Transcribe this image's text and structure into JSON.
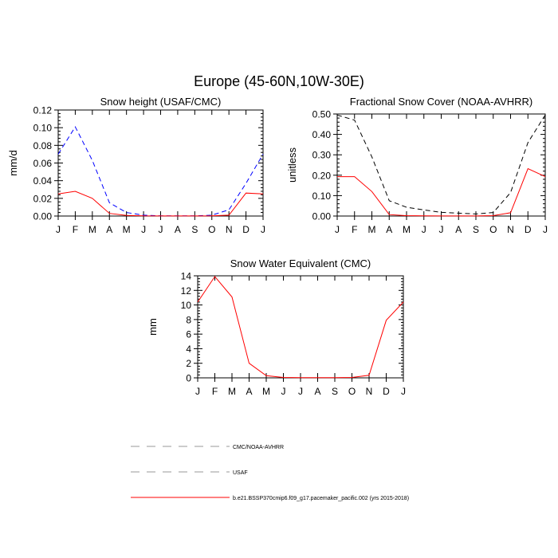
{
  "figure": {
    "title": "Europe (45-60N,10W-30E)"
  },
  "months": [
    "J",
    "F",
    "M",
    "A",
    "M",
    "J",
    "J",
    "A",
    "S",
    "O",
    "N",
    "D",
    "J"
  ],
  "chart_data": [
    {
      "type": "line",
      "title": "Snow height (USAF/CMC)",
      "xlabel": "",
      "ylabel": "mm/d",
      "ylim": [
        0,
        0.12
      ],
      "yticks": [
        0,
        0.02,
        0.04,
        0.06,
        0.08,
        0.1,
        0.12
      ],
      "ytick_labels": [
        "0.00",
        "0.02",
        "0.04",
        "0.06",
        "0.08",
        "0.10",
        "0.12"
      ],
      "series": [
        {
          "name": "USAF",
          "color": "#0000ff",
          "dash": "dash",
          "values": [
            0.07,
            0.101,
            0.063,
            0.015,
            0.004,
            0.001,
            0.0003,
            0.0002,
            0.0002,
            0.001,
            0.007,
            0.037,
            0.07
          ]
        },
        {
          "name": "b.e21.BSSP370cmip6.f09_g17.pacemaker_pacific.002 (yrs 2015-2018)",
          "color": "#ff0000",
          "dash": "solid",
          "values": [
            0.025,
            0.028,
            0.02,
            0.003,
            0.0007,
            0.0002,
            0.0001,
            0.0001,
            0.0001,
            0.0002,
            0.001,
            0.026,
            0.025
          ]
        }
      ]
    },
    {
      "type": "line",
      "title": "Fractional Snow Cover (NOAA-AVHRR)",
      "xlabel": "",
      "ylabel": "unitless",
      "ylim": [
        0,
        0.5
      ],
      "yticks": [
        0,
        0.1,
        0.2,
        0.3,
        0.4,
        0.5
      ],
      "ytick_labels": [
        "0.00",
        "0.10",
        "0.20",
        "0.30",
        "0.40",
        "0.50"
      ],
      "series": [
        {
          "name": "CMC/NOAA-AVHRR",
          "color": "#000000",
          "dash": "dash",
          "values": [
            0.495,
            0.47,
            0.29,
            0.075,
            0.043,
            0.03,
            0.018,
            0.014,
            0.01,
            0.017,
            0.115,
            0.36,
            0.495
          ]
        },
        {
          "name": "b.e21.BSSP370cmip6.f09_g17.pacemaker_pacific.002 (yrs 2015-2018)",
          "color": "#ff0000",
          "dash": "solid",
          "values": [
            0.193,
            0.193,
            0.12,
            0.007,
            0.002,
            0.001,
            0.0005,
            0.0005,
            0.0005,
            0.002,
            0.016,
            0.232,
            0.193
          ]
        }
      ]
    },
    {
      "type": "line",
      "title": "Snow Water Equivalent (CMC)",
      "xlabel": "",
      "ylabel": "mm",
      "ylim": [
        0,
        14
      ],
      "yticks": [
        0,
        2,
        4,
        6,
        8,
        10,
        12,
        14
      ],
      "ytick_labels": [
        "0",
        "2",
        "4",
        "6",
        "8",
        "10",
        "12",
        "14"
      ],
      "series": [
        {
          "name": "CMC/NOAA-AVHRR",
          "color": "#000000",
          "dash": "dash",
          "values": [
            0,
            0,
            0,
            0,
            0,
            0,
            0,
            0,
            0,
            0,
            0,
            0,
            0
          ]
        },
        {
          "name": "b.e21.BSSP370cmip6.f09_g17.pacemaker_pacific.002 (yrs 2015-2018)",
          "color": "#ff0000",
          "dash": "solid",
          "values": [
            10.4,
            13.9,
            11.1,
            2.0,
            0.3,
            0.05,
            0.02,
            0.02,
            0.02,
            0.05,
            0.35,
            7.9,
            10.4
          ]
        }
      ]
    }
  ],
  "legend": [
    {
      "label": "CMC/NOAA-AVHRR",
      "color": "#999999",
      "dash": "longdash"
    },
    {
      "label": "USAF",
      "color": "#999999",
      "dash": "longdash"
    },
    {
      "label": "b.e21.BSSP370cmip6.f09_g17.pacemaker_pacific.002 (yrs 2015-2018)",
      "color": "#ff0000",
      "dash": "solid"
    }
  ]
}
